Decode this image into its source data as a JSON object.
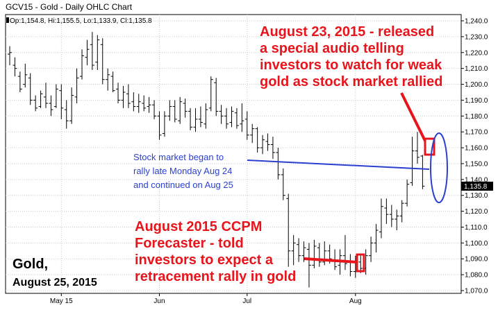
{
  "chart_data": {
    "type": "ohlc",
    "title": "GCV15 - Gold - Daily OHLC Chart",
    "ohlc_readout": "Op:1,154.8, Hi:1,155.5, Lo:1,133.9, Cl:1,135.8",
    "ylim": [
      1070,
      1245
    ],
    "y_ticks": [
      1070,
      1080,
      1090,
      1100,
      1110,
      1120,
      1130,
      1140,
      1150,
      1160,
      1170,
      1180,
      1190,
      1200,
      1210,
      1220,
      1230,
      1240
    ],
    "y_tick_labels": [
      "1,070.0",
      "1,080.0",
      "1,090.0",
      "1,100.0",
      "1,110.0",
      "1,120.0",
      "1,130.0",
      "1,140.0",
      "1,150.0",
      "1,160.0",
      "1,170.0",
      "1,180.0",
      "1,190.0",
      "1,200.0",
      "1,210.0",
      "1,220.0",
      "1,230.0",
      "1,240.0"
    ],
    "x_labels": [
      "May 15",
      "Jun",
      "Jul",
      "Aug"
    ],
    "x_label_index": [
      10,
      29,
      46,
      67
    ],
    "last_price_label": "1,135.8",
    "last_price": 1135.8,
    "grid": true,
    "bars": [
      {
        "o": 1219,
        "h": 1224,
        "l": 1212,
        "c": 1220
      },
      {
        "o": 1212,
        "h": 1217,
        "l": 1205,
        "c": 1210
      },
      {
        "o": 1205,
        "h": 1208,
        "l": 1195,
        "c": 1197
      },
      {
        "o": 1200,
        "h": 1213,
        "l": 1198,
        "c": 1206
      },
      {
        "o": 1204,
        "h": 1207,
        "l": 1187,
        "c": 1190
      },
      {
        "o": 1190,
        "h": 1193,
        "l": 1183,
        "c": 1185
      },
      {
        "o": 1186,
        "h": 1196,
        "l": 1185,
        "c": 1194
      },
      {
        "o": 1192,
        "h": 1201,
        "l": 1185,
        "c": 1188
      },
      {
        "o": 1188,
        "h": 1193,
        "l": 1180,
        "c": 1184
      },
      {
        "o": 1186,
        "h": 1200,
        "l": 1185,
        "c": 1197
      },
      {
        "o": 1196,
        "h": 1200,
        "l": 1178,
        "c": 1185
      },
      {
        "o": 1184,
        "h": 1190,
        "l": 1172,
        "c": 1177
      },
      {
        "o": 1177,
        "h": 1198,
        "l": 1175,
        "c": 1193
      },
      {
        "o": 1192,
        "h": 1210,
        "l": 1188,
        "c": 1204
      },
      {
        "o": 1205,
        "h": 1222,
        "l": 1203,
        "c": 1218
      },
      {
        "o": 1217,
        "h": 1228,
        "l": 1212,
        "c": 1222
      },
      {
        "o": 1225,
        "h": 1233,
        "l": 1209,
        "c": 1212
      },
      {
        "o": 1214,
        "h": 1231,
        "l": 1209,
        "c": 1228
      },
      {
        "o": 1225,
        "h": 1229,
        "l": 1200,
        "c": 1203
      },
      {
        "o": 1203,
        "h": 1210,
        "l": 1196,
        "c": 1206
      },
      {
        "o": 1205,
        "h": 1208,
        "l": 1195,
        "c": 1196
      },
      {
        "o": 1197,
        "h": 1201,
        "l": 1188,
        "c": 1190
      },
      {
        "o": 1190,
        "h": 1199,
        "l": 1185,
        "c": 1195
      },
      {
        "o": 1194,
        "h": 1200,
        "l": 1185,
        "c": 1188
      },
      {
        "o": 1189,
        "h": 1195,
        "l": 1183,
        "c": 1186
      },
      {
        "o": 1186,
        "h": 1194,
        "l": 1182,
        "c": 1189
      },
      {
        "o": 1188,
        "h": 1193,
        "l": 1183,
        "c": 1185
      },
      {
        "o": 1186,
        "h": 1192,
        "l": 1182,
        "c": 1187
      },
      {
        "o": 1187,
        "h": 1190,
        "l": 1178,
        "c": 1180
      },
      {
        "o": 1180,
        "h": 1183,
        "l": 1165,
        "c": 1168
      },
      {
        "o": 1169,
        "h": 1183,
        "l": 1167,
        "c": 1180
      },
      {
        "o": 1180,
        "h": 1190,
        "l": 1177,
        "c": 1186
      },
      {
        "o": 1186,
        "h": 1190,
        "l": 1176,
        "c": 1178
      },
      {
        "o": 1177,
        "h": 1192,
        "l": 1175,
        "c": 1189
      },
      {
        "o": 1188,
        "h": 1191,
        "l": 1179,
        "c": 1183
      },
      {
        "o": 1183,
        "h": 1185,
        "l": 1171,
        "c": 1173
      },
      {
        "o": 1173,
        "h": 1185,
        "l": 1170,
        "c": 1178
      },
      {
        "o": 1178,
        "h": 1186,
        "l": 1173,
        "c": 1176
      },
      {
        "o": 1175,
        "h": 1188,
        "l": 1172,
        "c": 1184
      },
      {
        "o": 1185,
        "h": 1205,
        "l": 1183,
        "c": 1203
      },
      {
        "o": 1201,
        "h": 1204,
        "l": 1180,
        "c": 1183
      },
      {
        "o": 1183,
        "h": 1187,
        "l": 1175,
        "c": 1180
      },
      {
        "o": 1180,
        "h": 1185,
        "l": 1172,
        "c": 1175
      },
      {
        "o": 1176,
        "h": 1186,
        "l": 1173,
        "c": 1183
      },
      {
        "o": 1182,
        "h": 1185,
        "l": 1172,
        "c": 1174
      },
      {
        "o": 1175,
        "h": 1188,
        "l": 1170,
        "c": 1177
      },
      {
        "o": 1178,
        "h": 1183,
        "l": 1165,
        "c": 1168
      },
      {
        "o": 1168,
        "h": 1175,
        "l": 1163,
        "c": 1172
      },
      {
        "o": 1172,
        "h": 1173,
        "l": 1157,
        "c": 1160
      },
      {
        "o": 1160,
        "h": 1168,
        "l": 1156,
        "c": 1165
      },
      {
        "o": 1164,
        "h": 1169,
        "l": 1158,
        "c": 1162
      },
      {
        "o": 1162,
        "h": 1167,
        "l": 1153,
        "c": 1157
      },
      {
        "o": 1157,
        "h": 1160,
        "l": 1140,
        "c": 1143
      },
      {
        "o": 1143,
        "h": 1147,
        "l": 1127,
        "c": 1130
      },
      {
        "o": 1128,
        "h": 1131,
        "l": 1085,
        "c": 1095
      },
      {
        "o": 1095,
        "h": 1105,
        "l": 1086,
        "c": 1100
      },
      {
        "o": 1099,
        "h": 1103,
        "l": 1088,
        "c": 1092
      },
      {
        "o": 1092,
        "h": 1101,
        "l": 1088,
        "c": 1097
      },
      {
        "o": 1096,
        "h": 1100,
        "l": 1072,
        "c": 1086
      },
      {
        "o": 1086,
        "h": 1102,
        "l": 1084,
        "c": 1098
      },
      {
        "o": 1097,
        "h": 1100,
        "l": 1085,
        "c": 1088
      },
      {
        "o": 1088,
        "h": 1101,
        "l": 1086,
        "c": 1095
      },
      {
        "o": 1095,
        "h": 1099,
        "l": 1087,
        "c": 1090
      },
      {
        "o": 1089,
        "h": 1096,
        "l": 1083,
        "c": 1085
      },
      {
        "o": 1086,
        "h": 1096,
        "l": 1080,
        "c": 1092
      },
      {
        "o": 1092,
        "h": 1105,
        "l": 1083,
        "c": 1087
      },
      {
        "o": 1088,
        "h": 1093,
        "l": 1079,
        "c": 1082
      },
      {
        "o": 1082,
        "h": 1092,
        "l": 1078,
        "c": 1088
      },
      {
        "o": 1088,
        "h": 1093,
        "l": 1081,
        "c": 1084
      },
      {
        "o": 1084,
        "h": 1096,
        "l": 1080,
        "c": 1092
      },
      {
        "o": 1092,
        "h": 1104,
        "l": 1088,
        "c": 1100
      },
      {
        "o": 1100,
        "h": 1112,
        "l": 1094,
        "c": 1108
      },
      {
        "o": 1107,
        "h": 1128,
        "l": 1103,
        "c": 1123
      },
      {
        "o": 1122,
        "h": 1128,
        "l": 1112,
        "c": 1118
      },
      {
        "o": 1118,
        "h": 1124,
        "l": 1110,
        "c": 1115
      },
      {
        "o": 1115,
        "h": 1121,
        "l": 1108,
        "c": 1117
      },
      {
        "o": 1117,
        "h": 1127,
        "l": 1113,
        "c": 1125
      },
      {
        "o": 1125,
        "h": 1140,
        "l": 1123,
        "c": 1137
      },
      {
        "o": 1138,
        "h": 1167,
        "l": 1136,
        "c": 1158
      },
      {
        "o": 1158,
        "h": 1170,
        "l": 1150,
        "c": 1154
      },
      {
        "o": 1154.8,
        "h": 1155.5,
        "l": 1133.9,
        "c": 1135.8
      }
    ]
  },
  "annotations": {
    "top_right": [
      "August 23, 2015 - released",
      "a special audio telling",
      "investors to watch for weak",
      "gold as stock market rallied"
    ],
    "blue": [
      "Stock market began to",
      "rally late Monday Aug 24",
      "and continued on Aug 25"
    ],
    "bottom_mid": [
      "August 2015 CCPM",
      "Forecaster - told",
      "investors to expect a",
      "retracement rally in gold"
    ],
    "bottom_left_title": "Gold,",
    "bottom_left_date": "August 25, 2015"
  },
  "colors": {
    "grid": "#c9c9c9",
    "bars": "#000000",
    "red": "#e8141b",
    "blue": "#2b3fcf"
  }
}
